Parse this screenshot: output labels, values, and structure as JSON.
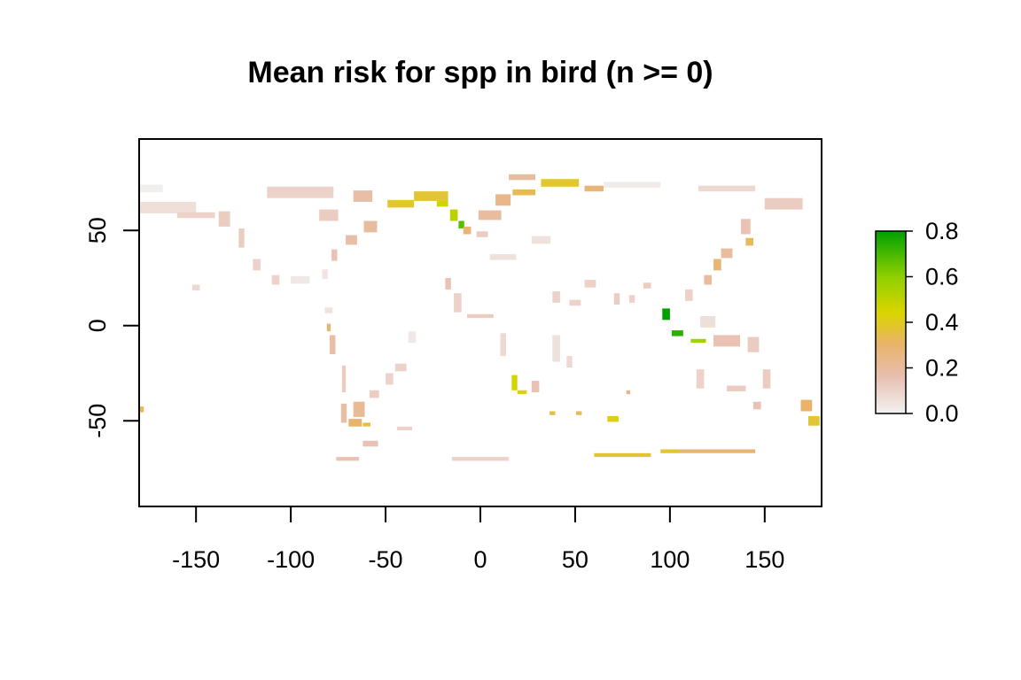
{
  "chart_data": {
    "type": "heatmap",
    "title": "Mean risk for spp in bird (n >= 0)",
    "xlabel": "",
    "ylabel": "",
    "xlim": [
      -180,
      180
    ],
    "ylim": [
      -95,
      98
    ],
    "x_ticks": [
      -150,
      -100,
      -50,
      0,
      50,
      100,
      150
    ],
    "y_ticks": [
      -50,
      0,
      50
    ],
    "grid": false,
    "legend": {
      "placement": "right",
      "type": "colorbar",
      "ticks": [
        "0.0",
        "0.2",
        "0.4",
        "0.6",
        "0.8"
      ],
      "range": [
        0,
        0.8
      ],
      "colors": [
        "#f2f2f2",
        "#e8bfb0",
        "#e9b36b",
        "#dcd400",
        "#8ed000",
        "#00a000"
      ]
    },
    "regions": [
      {
        "lon": -175,
        "lat": 72,
        "w": 15,
        "h": 4,
        "value": 0.01
      },
      {
        "lon": -165,
        "lat": 62,
        "w": 30,
        "h": 6,
        "value": 0.06
      },
      {
        "lon": -150,
        "lat": 58,
        "w": 20,
        "h": 3,
        "value": 0.1
      },
      {
        "lon": -135,
        "lat": 56,
        "w": 6,
        "h": 8,
        "value": 0.12
      },
      {
        "lon": -126,
        "lat": 46,
        "w": 3,
        "h": 10,
        "value": 0.12
      },
      {
        "lon": -118,
        "lat": 32,
        "w": 4,
        "h": 6,
        "value": 0.1
      },
      {
        "lon": -108,
        "lat": 24,
        "w": 4,
        "h": 5,
        "value": 0.1
      },
      {
        "lon": -95,
        "lat": 24,
        "w": 10,
        "h": 4,
        "value": 0.03
      },
      {
        "lon": -82,
        "lat": 27,
        "w": 3,
        "h": 5,
        "value": 0.04
      },
      {
        "lon": -77,
        "lat": 37,
        "w": 3,
        "h": 6,
        "value": 0.15
      },
      {
        "lon": -68,
        "lat": 45,
        "w": 6,
        "h": 5,
        "value": 0.18
      },
      {
        "lon": -58,
        "lat": 52,
        "w": 7,
        "h": 6,
        "value": 0.2
      },
      {
        "lon": -80,
        "lat": 58,
        "w": 10,
        "h": 6,
        "value": 0.12
      },
      {
        "lon": -95,
        "lat": 70,
        "w": 35,
        "h": 6,
        "value": 0.1
      },
      {
        "lon": -62,
        "lat": 68,
        "w": 10,
        "h": 6,
        "value": 0.18
      },
      {
        "lon": -42,
        "lat": 64,
        "w": 14,
        "h": 4,
        "value": 0.42
      },
      {
        "lon": -26,
        "lat": 68,
        "w": 18,
        "h": 5,
        "value": 0.4
      },
      {
        "lon": -20,
        "lat": 64,
        "w": 6,
        "h": 3,
        "value": 0.5
      },
      {
        "lon": -14,
        "lat": 58,
        "w": 4,
        "h": 6,
        "value": 0.55
      },
      {
        "lon": -10,
        "lat": 53,
        "w": 3,
        "h": 4,
        "value": 0.7
      },
      {
        "lon": -7,
        "lat": 50,
        "w": 4,
        "h": 4,
        "value": 0.3
      },
      {
        "lon": 5,
        "lat": 58,
        "w": 12,
        "h": 5,
        "value": 0.2
      },
      {
        "lon": 12,
        "lat": 66,
        "w": 8,
        "h": 6,
        "value": 0.25
      },
      {
        "lon": 22,
        "lat": 78,
        "w": 14,
        "h": 3,
        "value": 0.2
      },
      {
        "lon": 42,
        "lat": 75,
        "w": 20,
        "h": 4,
        "value": 0.42
      },
      {
        "lon": 60,
        "lat": 72,
        "w": 10,
        "h": 3,
        "value": 0.3
      },
      {
        "lon": 80,
        "lat": 74,
        "w": 30,
        "h": 3,
        "value": 0.02
      },
      {
        "lon": 130,
        "lat": 72,
        "w": 30,
        "h": 3,
        "value": 0.08
      },
      {
        "lon": 160,
        "lat": 64,
        "w": 20,
        "h": 6,
        "value": 0.12
      },
      {
        "lon": 140,
        "lat": 52,
        "w": 5,
        "h": 8,
        "value": 0.15
      },
      {
        "lon": 142,
        "lat": 44,
        "w": 4,
        "h": 4,
        "value": 0.35
      },
      {
        "lon": 130,
        "lat": 38,
        "w": 6,
        "h": 5,
        "value": 0.2
      },
      {
        "lon": 125,
        "lat": 32,
        "w": 4,
        "h": 6,
        "value": 0.3
      },
      {
        "lon": 120,
        "lat": 24,
        "w": 4,
        "h": 5,
        "value": 0.2
      },
      {
        "lon": 110,
        "lat": 16,
        "w": 4,
        "h": 6,
        "value": 0.1
      },
      {
        "lon": 98,
        "lat": 6,
        "w": 4,
        "h": 6,
        "value": 0.8
      },
      {
        "lon": 104,
        "lat": -4,
        "w": 6,
        "h": 3,
        "value": 0.75
      },
      {
        "lon": 115,
        "lat": -8,
        "w": 8,
        "h": 2,
        "value": 0.6
      },
      {
        "lon": 120,
        "lat": 2,
        "w": 8,
        "h": 6,
        "value": 0.06
      },
      {
        "lon": 130,
        "lat": -8,
        "w": 14,
        "h": 6,
        "value": 0.15
      },
      {
        "lon": 144,
        "lat": -10,
        "w": 6,
        "h": 8,
        "value": 0.12
      },
      {
        "lon": 151,
        "lat": -28,
        "w": 4,
        "h": 10,
        "value": 0.12
      },
      {
        "lon": 135,
        "lat": -33,
        "w": 10,
        "h": 3,
        "value": 0.12
      },
      {
        "lon": 116,
        "lat": -28,
        "w": 4,
        "h": 10,
        "value": 0.1
      },
      {
        "lon": 146,
        "lat": -42,
        "w": 4,
        "h": 4,
        "value": 0.15
      },
      {
        "lon": 172,
        "lat": -42,
        "w": 6,
        "h": 6,
        "value": 0.32
      },
      {
        "lon": 176,
        "lat": -50,
        "w": 6,
        "h": 5,
        "value": 0.4
      },
      {
        "lon": 40,
        "lat": 15,
        "w": 4,
        "h": 6,
        "value": 0.1
      },
      {
        "lon": 50,
        "lat": 12,
        "w": 6,
        "h": 3,
        "value": 0.1
      },
      {
        "lon": 58,
        "lat": 22,
        "w": 6,
        "h": 4,
        "value": 0.1
      },
      {
        "lon": 72,
        "lat": 14,
        "w": 3,
        "h": 6,
        "value": 0.12
      },
      {
        "lon": 80,
        "lat": 14,
        "w": 3,
        "h": 4,
        "value": 0.1
      },
      {
        "lon": 88,
        "lat": 21,
        "w": 4,
        "h": 3,
        "value": 0.12
      },
      {
        "lon": 40,
        "lat": -12,
        "w": 4,
        "h": 14,
        "value": 0.05
      },
      {
        "lon": 47,
        "lat": -19,
        "w": 3,
        "h": 6,
        "value": 0.08
      },
      {
        "lon": 29,
        "lat": -32,
        "w": 4,
        "h": 6,
        "value": 0.15
      },
      {
        "lon": 18,
        "lat": -30,
        "w": 3,
        "h": 8,
        "value": 0.5
      },
      {
        "lon": 22,
        "lat": -35,
        "w": 5,
        "h": 2,
        "value": 0.45
      },
      {
        "lon": 12,
        "lat": -10,
        "w": 3,
        "h": 12,
        "value": 0.08
      },
      {
        "lon": -12,
        "lat": 12,
        "w": 4,
        "h": 10,
        "value": 0.1
      },
      {
        "lon": -17,
        "lat": 22,
        "w": 3,
        "h": 6,
        "value": 0.15
      },
      {
        "lon": 0,
        "lat": 5,
        "w": 14,
        "h": 2,
        "value": 0.12
      },
      {
        "lon": 12,
        "lat": 36,
        "w": 14,
        "h": 3,
        "value": 0.05
      },
      {
        "lon": -36,
        "lat": -6,
        "w": 4,
        "h": 6,
        "value": 0.03
      },
      {
        "lon": -42,
        "lat": -22,
        "w": 6,
        "h": 4,
        "value": 0.1
      },
      {
        "lon": -48,
        "lat": -28,
        "w": 4,
        "h": 6,
        "value": 0.1
      },
      {
        "lon": -56,
        "lat": -36,
        "w": 5,
        "h": 4,
        "value": 0.12
      },
      {
        "lon": -64,
        "lat": -44,
        "w": 6,
        "h": 8,
        "value": 0.22
      },
      {
        "lon": -66,
        "lat": -51,
        "w": 7,
        "h": 4,
        "value": 0.32
      },
      {
        "lon": -72,
        "lat": -46,
        "w": 3,
        "h": 10,
        "value": 0.18
      },
      {
        "lon": -72,
        "lat": -28,
        "w": 2,
        "h": 14,
        "value": 0.12
      },
      {
        "lon": -78,
        "lat": -10,
        "w": 3,
        "h": 10,
        "value": 0.18
      },
      {
        "lon": -80,
        "lat": -1,
        "w": 2,
        "h": 4,
        "value": 0.3
      },
      {
        "lon": -80,
        "lat": 8,
        "w": 4,
        "h": 3,
        "value": 0.05
      },
      {
        "lon": -60,
        "lat": -52,
        "w": 4,
        "h": 2,
        "value": 0.38
      },
      {
        "lon": -40,
        "lat": -54,
        "w": 8,
        "h": 2,
        "value": 0.1
      },
      {
        "lon": -58,
        "lat": -62,
        "w": 8,
        "h": 3,
        "value": 0.15
      },
      {
        "lon": -70,
        "lat": -70,
        "w": 12,
        "h": 2,
        "value": 0.15
      },
      {
        "lon": 70,
        "lat": -49,
        "w": 6,
        "h": 3,
        "value": 0.45
      },
      {
        "lon": 38,
        "lat": -46,
        "w": 3,
        "h": 2,
        "value": 0.38
      },
      {
        "lon": 52,
        "lat": -46,
        "w": 3,
        "h": 2,
        "value": 0.35
      },
      {
        "lon": 75,
        "lat": -68,
        "w": 30,
        "h": 2,
        "value": 0.4
      },
      {
        "lon": 125,
        "lat": -66,
        "w": 40,
        "h": 2,
        "value": 0.3
      },
      {
        "lon": 100,
        "lat": -66,
        "w": 10,
        "h": 2,
        "value": 0.4
      },
      {
        "lon": -179,
        "lat": -44,
        "w": 3,
        "h": 3,
        "value": 0.35
      },
      {
        "lon": 0,
        "lat": -70,
        "w": 30,
        "h": 2,
        "value": 0.1
      },
      {
        "lon": 23,
        "lat": 70,
        "w": 12,
        "h": 3,
        "value": 0.35
      },
      {
        "lon": 1,
        "lat": 48,
        "w": 6,
        "h": 3,
        "value": 0.12
      },
      {
        "lon": 32,
        "lat": 45,
        "w": 10,
        "h": 4,
        "value": 0.05
      },
      {
        "lon": 78,
        "lat": -35,
        "w": 2,
        "h": 2,
        "value": 0.25
      },
      {
        "lon": -150,
        "lat": 20,
        "w": 4,
        "h": 3,
        "value": 0.08
      }
    ]
  }
}
